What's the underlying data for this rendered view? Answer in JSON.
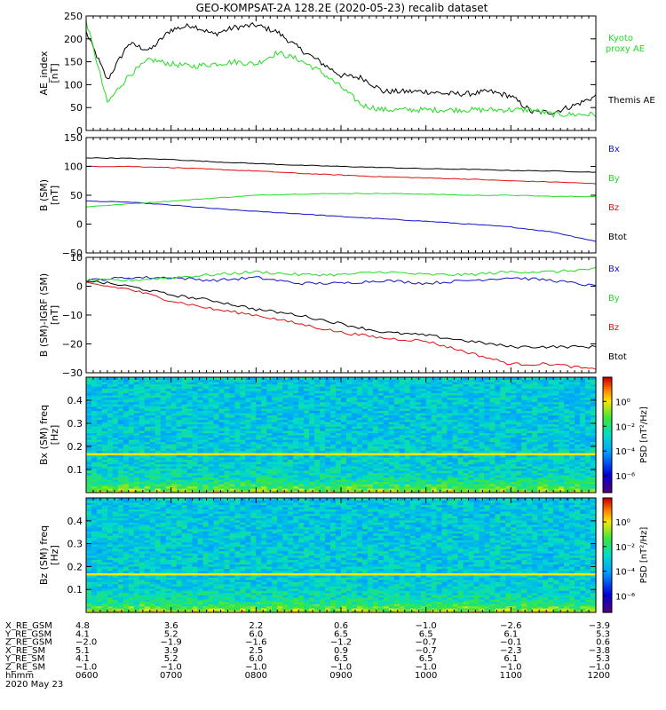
{
  "figure": {
    "title": "GEO-KOMPSAT-2A 128.2E (2020-05-23) recalib dataset"
  },
  "colors": {
    "black": "#000000",
    "green": "#22dd22",
    "red": "#dd1111",
    "blue": "#1111cc"
  },
  "chart_data": [
    {
      "type": "line",
      "ylabel": "AE_index [nT]",
      "ylim": [
        0,
        250
      ],
      "yticks": [
        "0",
        "50",
        "100",
        "150",
        "200",
        "250"
      ],
      "x": [
        "06:00",
        "06:15",
        "06:30",
        "06:45",
        "07:00",
        "07:15",
        "07:30",
        "07:45",
        "08:00",
        "08:15",
        "08:30",
        "08:45",
        "09:00",
        "09:15",
        "09:30",
        "09:45",
        "10:00",
        "10:15",
        "10:30",
        "10:45",
        "11:00",
        "11:15",
        "11:30",
        "11:45",
        "12:00"
      ],
      "series": [
        {
          "name": "Themis AE",
          "color": "black",
          "values": [
            215,
            110,
            190,
            175,
            220,
            230,
            210,
            225,
            230,
            215,
            180,
            150,
            120,
            115,
            85,
            85,
            85,
            80,
            80,
            85,
            75,
            40,
            40,
            55,
            75
          ]
        },
        {
          "name": "Kyoto proxy AE",
          "color": "green",
          "values": [
            240,
            60,
            120,
            155,
            145,
            140,
            145,
            150,
            145,
            170,
            155,
            130,
            95,
            55,
            45,
            45,
            45,
            45,
            45,
            45,
            45,
            45,
            35,
            35,
            35
          ]
        }
      ]
    },
    {
      "type": "line",
      "ylabel": "B (SM) [nT]",
      "ylim": [
        -50,
        150
      ],
      "yticks": [
        "−50",
        "0",
        "50",
        "100",
        "150"
      ],
      "x": [
        "06:00",
        "06:30",
        "07:00",
        "07:30",
        "08:00",
        "08:30",
        "09:00",
        "09:30",
        "10:00",
        "10:30",
        "11:00",
        "11:30",
        "12:00"
      ],
      "series": [
        {
          "name": "Bx",
          "color": "blue",
          "values": [
            40,
            38,
            33,
            27,
            22,
            18,
            13,
            9,
            5,
            0,
            -5,
            -14,
            -30
          ]
        },
        {
          "name": "By",
          "color": "green",
          "values": [
            30,
            35,
            40,
            45,
            50,
            52,
            53,
            53,
            52,
            50,
            50,
            48,
            48
          ]
        },
        {
          "name": "Bz",
          "color": "red",
          "values": [
            100,
            100,
            98,
            95,
            92,
            88,
            85,
            82,
            80,
            78,
            75,
            73,
            70
          ]
        },
        {
          "name": "Btot",
          "color": "black",
          "values": [
            115,
            114,
            112,
            108,
            105,
            102,
            100,
            98,
            96,
            95,
            93,
            92,
            90
          ]
        }
      ]
    },
    {
      "type": "line",
      "ylabel": "B (SM)-IGRF (SM) [nT]",
      "ylim": [
        -30,
        10
      ],
      "yticks": [
        "−30",
        "−20",
        "−10",
        "0",
        "10"
      ],
      "x": [
        "06:00",
        "06:30",
        "07:00",
        "07:30",
        "08:00",
        "08:30",
        "09:00",
        "09:30",
        "10:00",
        "10:30",
        "11:00",
        "11:30",
        "12:00"
      ],
      "series": [
        {
          "name": "Bx",
          "color": "blue",
          "values": [
            2,
            3,
            3,
            2,
            3,
            1,
            1,
            2,
            1,
            2,
            3,
            2,
            0
          ]
        },
        {
          "name": "By",
          "color": "green",
          "values": [
            2,
            2,
            3,
            4,
            5,
            4,
            4,
            5,
            4,
            4,
            5,
            5,
            6
          ]
        },
        {
          "name": "Bz",
          "color": "red",
          "values": [
            1,
            -1,
            -5,
            -8,
            -10,
            -13,
            -16,
            -18,
            -19,
            -23,
            -27,
            -27,
            -29
          ]
        },
        {
          "name": "Btot",
          "color": "black",
          "values": [
            2,
            0,
            -3,
            -5,
            -8,
            -10,
            -13,
            -16,
            -17,
            -19,
            -21,
            -21,
            -21
          ]
        }
      ]
    },
    {
      "type": "heatmap",
      "ylabel": "Bx (SM) freq [Hz]",
      "ylim": [
        0,
        0.5
      ],
      "yticks": [
        "0.1",
        "0.2",
        "0.3",
        "0.4"
      ],
      "colorbar_label": "PSD [nT²/Hz]",
      "colorbar_ticks": [
        "10⁰",
        "10⁻²",
        "10⁻⁴",
        "10⁻⁶"
      ],
      "line_frequency_hz": 0.17
    },
    {
      "type": "heatmap",
      "ylabel": "Bz (SM) freq [Hz]",
      "ylim": [
        0,
        0.5
      ],
      "yticks": [
        "0.1",
        "0.2",
        "0.3",
        "0.4"
      ],
      "colorbar_label": "PSD [nT²/Hz]",
      "colorbar_ticks": [
        "10⁰",
        "10⁻²",
        "10⁻⁴",
        "10⁻⁶"
      ],
      "line_frequency_hz": 0.17
    }
  ],
  "ephemeris": {
    "rows": [
      {
        "label": "X_RE_GSM",
        "values": [
          "4.8",
          "3.6",
          "2.2",
          "0.6",
          "−1.0",
          "−2.6",
          "−3.9"
        ]
      },
      {
        "label": "Y_RE_GSM",
        "values": [
          "4.1",
          "5.2",
          "6.0",
          "6.5",
          "6.5",
          "6.1",
          "5.3"
        ]
      },
      {
        "label": "Z_RE_GSM",
        "values": [
          "−2.0",
          "−1.9",
          "−1.6",
          "−1.2",
          "−0.7",
          "−0.1",
          "0.6"
        ]
      },
      {
        "label": "X_RE_SM",
        "values": [
          "5.1",
          "3.9",
          "2.5",
          "0.9",
          "−0.7",
          "−2.3",
          "−3.8"
        ]
      },
      {
        "label": "Y_RE_SM",
        "values": [
          "4.1",
          "5.2",
          "6.0",
          "6.5",
          "6.5",
          "6.1",
          "5.3"
        ]
      },
      {
        "label": "Z_RE_SM",
        "values": [
          "−1.0",
          "−1.0",
          "−1.0",
          "−1.0",
          "−1.0",
          "−1.0",
          "−1.0"
        ]
      },
      {
        "label": "hhmm",
        "values": [
          "0600",
          "0700",
          "0800",
          "0900",
          "1000",
          "1100",
          "1200"
        ]
      }
    ],
    "date": "2020 May 23"
  }
}
